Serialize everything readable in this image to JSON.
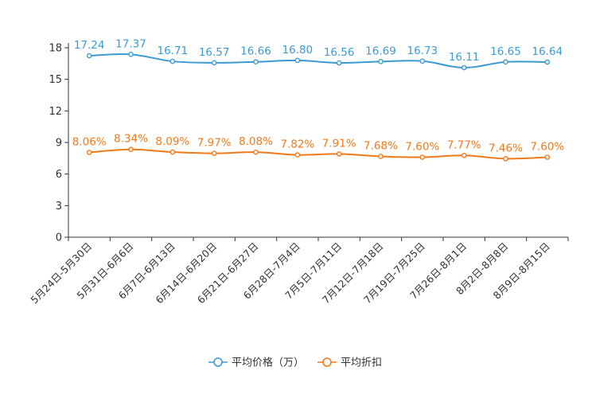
{
  "chart_data": {
    "type": "line",
    "categories": [
      "5月24日-5月30日",
      "5月31日-6月6日",
      "6月7日-6月13日",
      "6月14日-6月20日",
      "6月21日-6月27日",
      "6月28日-7月4日",
      "7月5日-7月11日",
      "7月12日-7月18日",
      "7月19日-7月25日",
      "7月26日-8月1日",
      "8月2日-8月8日",
      "8月9日-8月15日"
    ],
    "series": [
      {
        "name": "平均价格（万）",
        "color": "#3d9bd1",
        "values": [
          17.24,
          17.37,
          16.71,
          16.57,
          16.66,
          16.8,
          16.56,
          16.69,
          16.73,
          16.11,
          16.65,
          16.64
        ],
        "labels": [
          "17.24",
          "17.37",
          "16.71",
          "16.57",
          "16.66",
          "16.80",
          "16.56",
          "16.69",
          "16.73",
          "16.11",
          "16.65",
          "16.64"
        ]
      },
      {
        "name": "平均折扣",
        "color": "#f07a1a",
        "values": [
          8.06,
          8.34,
          8.09,
          7.97,
          8.08,
          7.82,
          7.91,
          7.68,
          7.6,
          7.77,
          7.46,
          7.6
        ],
        "labels": [
          "8.06%",
          "8.34%",
          "8.09%",
          "7.97%",
          "8.08%",
          "7.82%",
          "7.91%",
          "7.68%",
          "7.60%",
          "7.77%",
          "7.46%",
          "7.60%"
        ]
      }
    ],
    "y_ticks": [
      "0",
      "3",
      "6",
      "9",
      "12",
      "15",
      "18"
    ],
    "ylim": [
      0,
      18
    ],
    "grid": false,
    "legend_position": "bottom-center",
    "title": "",
    "xlabel": "",
    "ylabel": ""
  }
}
